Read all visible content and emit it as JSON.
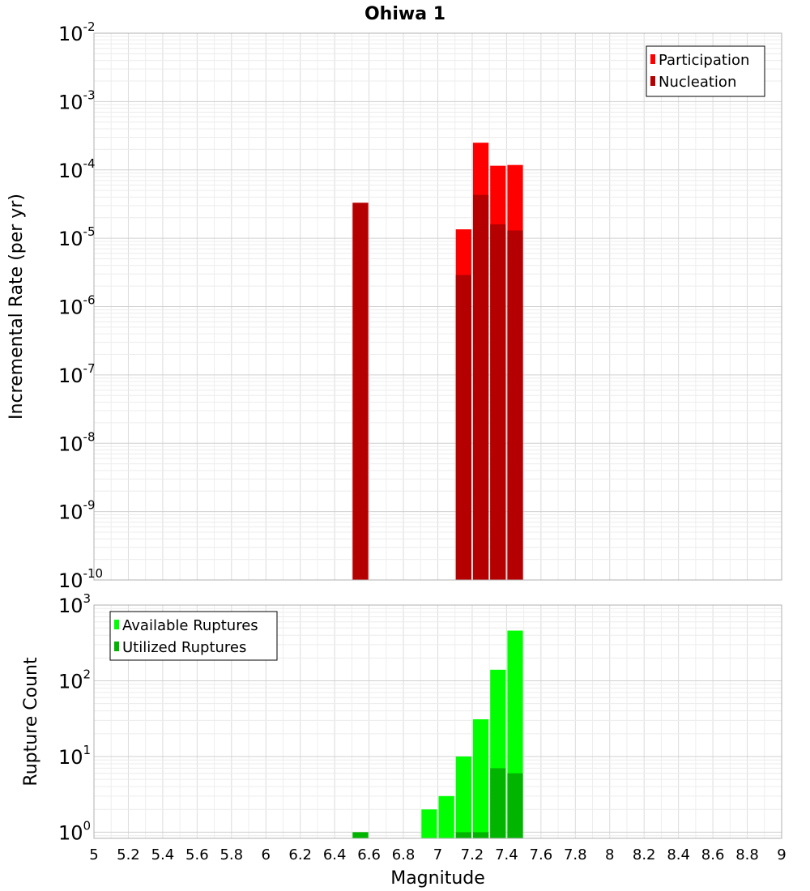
{
  "title": "Ohiwa 1",
  "chart_data": [
    {
      "type": "bar",
      "ylabel": "Incremental Rate (per yr)",
      "yscale": "log",
      "ylim": [
        1e-10,
        0.01
      ],
      "xlim": [
        5,
        9
      ],
      "grid": true,
      "legend_position": "top-right",
      "yticks": [
        {
          "base": "10",
          "exp": "-10"
        },
        {
          "base": "10",
          "exp": "-9"
        },
        {
          "base": "10",
          "exp": "-8"
        },
        {
          "base": "10",
          "exp": "-7"
        },
        {
          "base": "10",
          "exp": "-6"
        },
        {
          "base": "10",
          "exp": "-5"
        },
        {
          "base": "10",
          "exp": "-4"
        },
        {
          "base": "10",
          "exp": "-3"
        },
        {
          "base": "10",
          "exp": "-2"
        }
      ],
      "series": [
        {
          "name": "Participation",
          "color": "#ff0000",
          "x": [
            6.55,
            7.15,
            7.25,
            7.35,
            7.45
          ],
          "values": [
            3.3e-05,
            1.35e-05,
            0.00025,
            0.000115,
            0.000118
          ]
        },
        {
          "name": "Nucleation",
          "color": "#b40000",
          "x": [
            6.55,
            7.15,
            7.25,
            7.35,
            7.45
          ],
          "values": [
            3.3e-05,
            2.9e-06,
            4.3e-05,
            1.6e-05,
            1.3e-05
          ]
        }
      ]
    },
    {
      "type": "bar",
      "ylabel": "Rupture Count",
      "xlabel": "Magnitude",
      "yscale": "log",
      "ylim": [
        0.83,
        1000
      ],
      "xlim": [
        5,
        9
      ],
      "grid": true,
      "legend_position": "top-left",
      "yticks": [
        {
          "base": "10",
          "exp": "0"
        },
        {
          "base": "10",
          "exp": "1"
        },
        {
          "base": "10",
          "exp": "2"
        },
        {
          "base": "10",
          "exp": "3"
        }
      ],
      "xticks": [
        "5",
        "5.2",
        "5.4",
        "5.6",
        "5.8",
        "6",
        "6.2",
        "6.4",
        "6.6",
        "6.8",
        "7",
        "7.2",
        "7.4",
        "7.6",
        "7.8",
        "8",
        "8.2",
        "8.4",
        "8.6",
        "8.8",
        "9"
      ],
      "series": [
        {
          "name": "Available Ruptures",
          "color": "#00ff00",
          "x": [
            6.55,
            6.95,
            7.05,
            7.15,
            7.25,
            7.35,
            7.45
          ],
          "values": [
            1,
            2,
            3,
            10,
            31,
            140,
            460
          ]
        },
        {
          "name": "Utilized Ruptures",
          "color": "#00b400",
          "x": [
            6.55,
            7.15,
            7.25,
            7.35,
            7.45
          ],
          "values": [
            1,
            1,
            1,
            7,
            6
          ]
        }
      ]
    }
  ]
}
